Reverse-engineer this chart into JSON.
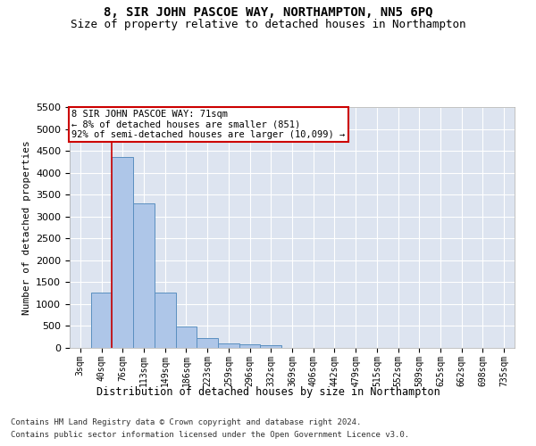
{
  "title1": "8, SIR JOHN PASCOE WAY, NORTHAMPTON, NN5 6PQ",
  "title2": "Size of property relative to detached houses in Northampton",
  "xlabel": "Distribution of detached houses by size in Northampton",
  "ylabel": "Number of detached properties",
  "footer1": "Contains HM Land Registry data © Crown copyright and database right 2024.",
  "footer2": "Contains public sector information licensed under the Open Government Licence v3.0.",
  "bar_labels": [
    "3sqm",
    "40sqm",
    "76sqm",
    "113sqm",
    "149sqm",
    "186sqm",
    "223sqm",
    "259sqm",
    "296sqm",
    "332sqm",
    "369sqm",
    "406sqm",
    "442sqm",
    "479sqm",
    "515sqm",
    "552sqm",
    "589sqm",
    "625sqm",
    "662sqm",
    "698sqm",
    "735sqm"
  ],
  "bar_values": [
    0,
    1270,
    4350,
    3300,
    1270,
    490,
    220,
    95,
    80,
    60,
    0,
    0,
    0,
    0,
    0,
    0,
    0,
    0,
    0,
    0,
    0
  ],
  "bar_color": "#aec6e8",
  "bar_edge_color": "#5a8fc0",
  "annotation_box_color": "#cc0000",
  "annotation_text": "8 SIR JOHN PASCOE WAY: 71sqm\n← 8% of detached houses are smaller (851)\n92% of semi-detached houses are larger (10,099) →",
  "vline_x": 1.5,
  "vline_color": "#cc0000",
  "ylim": [
    0,
    5500
  ],
  "yticks": [
    0,
    500,
    1000,
    1500,
    2000,
    2500,
    3000,
    3500,
    4000,
    4500,
    5000,
    5500
  ],
  "bg_color": "#dde4f0",
  "grid_color": "#ffffff",
  "fig_bg_color": "#ffffff",
  "title1_fontsize": 10,
  "title2_fontsize": 9,
  "xlabel_fontsize": 8.5,
  "ylabel_fontsize": 8,
  "tick_fontsize": 7,
  "footer_fontsize": 6.5,
  "annotation_fontsize": 7.5
}
